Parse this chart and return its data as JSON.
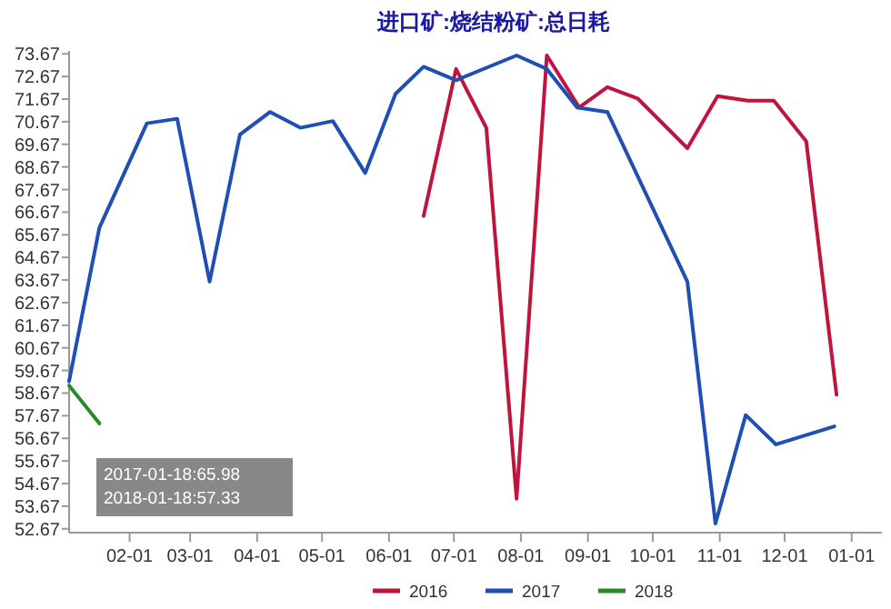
{
  "chart_data": {
    "type": "line",
    "title": "进口矿:烧结粉矿:总日耗",
    "series": [
      {
        "name": "2016",
        "color": "#c0143c",
        "x": [
          "2017-06-17",
          "2017-07-02",
          "2017-07-16",
          "2017-07-30",
          "2017-08-13",
          "2017-08-28",
          "2017-09-10",
          "2017-09-24",
          "2017-10-17",
          "2017-10-31",
          "2017-11-14",
          "2017-11-26",
          "2017-12-11",
          "2017-12-25"
        ],
        "values": [
          66.5,
          73.0,
          70.4,
          54.0,
          73.6,
          71.3,
          72.2,
          71.7,
          69.5,
          71.8,
          71.6,
          71.6,
          69.8,
          58.6
        ]
      },
      {
        "name": "2017",
        "color": "#1f4fb4",
        "x": [
          "2017-01-04",
          "2017-01-18",
          "2017-02-09",
          "2017-02-23",
          "2017-03-10",
          "2017-03-24",
          "2017-04-07",
          "2017-04-21",
          "2017-05-06",
          "2017-05-21",
          "2017-06-04",
          "2017-06-17",
          "2017-07-02",
          "2017-07-30",
          "2017-08-13",
          "2017-08-27",
          "2017-09-10",
          "2017-10-17",
          "2017-10-30",
          "2017-11-13",
          "2017-11-27",
          "2017-12-24"
        ],
        "values": [
          59.2,
          65.98,
          70.6,
          70.8,
          63.6,
          70.1,
          71.1,
          70.4,
          70.7,
          68.4,
          71.9,
          73.1,
          72.5,
          73.6,
          73.0,
          71.3,
          71.1,
          63.6,
          52.9,
          57.7,
          56.4,
          57.2
        ]
      },
      {
        "name": "2018",
        "color": "#2a8a2a",
        "x": [
          "2017-01-04",
          "2017-01-18"
        ],
        "values": [
          59.0,
          57.33
        ]
      }
    ],
    "xlim": [
      "2017-01-04",
      "2018-01-15"
    ],
    "xticks": [
      {
        "value": "2017-02-01",
        "label": "02-01"
      },
      {
        "value": "2017-03-01",
        "label": "03-01"
      },
      {
        "value": "2017-04-01",
        "label": "04-01"
      },
      {
        "value": "2017-05-01",
        "label": "05-01"
      },
      {
        "value": "2017-06-01",
        "label": "06-01"
      },
      {
        "value": "2017-07-01",
        "label": "07-01"
      },
      {
        "value": "2017-08-01",
        "label": "08-01"
      },
      {
        "value": "2017-09-01",
        "label": "09-01"
      },
      {
        "value": "2017-10-01",
        "label": "10-01"
      },
      {
        "value": "2017-11-01",
        "label": "11-01"
      },
      {
        "value": "2017-12-01",
        "label": "12-01"
      },
      {
        "value": "2018-01-01",
        "label": "01-01"
      }
    ],
    "ylim": [
      52.5,
      73.8
    ],
    "yticks": [
      {
        "value": 52.67,
        "label": "52.67"
      },
      {
        "value": 53.67,
        "label": "53.67"
      },
      {
        "value": 54.67,
        "label": "54.67"
      },
      {
        "value": 55.67,
        "label": "55.67"
      },
      {
        "value": 56.67,
        "label": "56.67"
      },
      {
        "value": 57.67,
        "label": "57.67"
      },
      {
        "value": 58.67,
        "label": "58.67"
      },
      {
        "value": 59.67,
        "label": "59.67"
      },
      {
        "value": 60.67,
        "label": "60.67"
      },
      {
        "value": 61.67,
        "label": "61.67"
      },
      {
        "value": 62.67,
        "label": "62.67"
      },
      {
        "value": 63.67,
        "label": "63.67"
      },
      {
        "value": 64.67,
        "label": "64.67"
      },
      {
        "value": 65.67,
        "label": "65.67"
      },
      {
        "value": 66.67,
        "label": "66.67"
      },
      {
        "value": 67.67,
        "label": "67.67"
      },
      {
        "value": 68.67,
        "label": "68.67"
      },
      {
        "value": 69.67,
        "label": "69.67"
      },
      {
        "value": 70.67,
        "label": "70.67"
      },
      {
        "value": 71.67,
        "label": "71.67"
      },
      {
        "value": 72.67,
        "label": "72.67"
      },
      {
        "value": 73.67,
        "label": "73.67"
      }
    ],
    "annotations": [
      "2017-01-18:65.98",
      "2018-01-18:57.33"
    ],
    "legend": "bottom",
    "grid": false,
    "marker": "none",
    "line_style": "solid"
  }
}
